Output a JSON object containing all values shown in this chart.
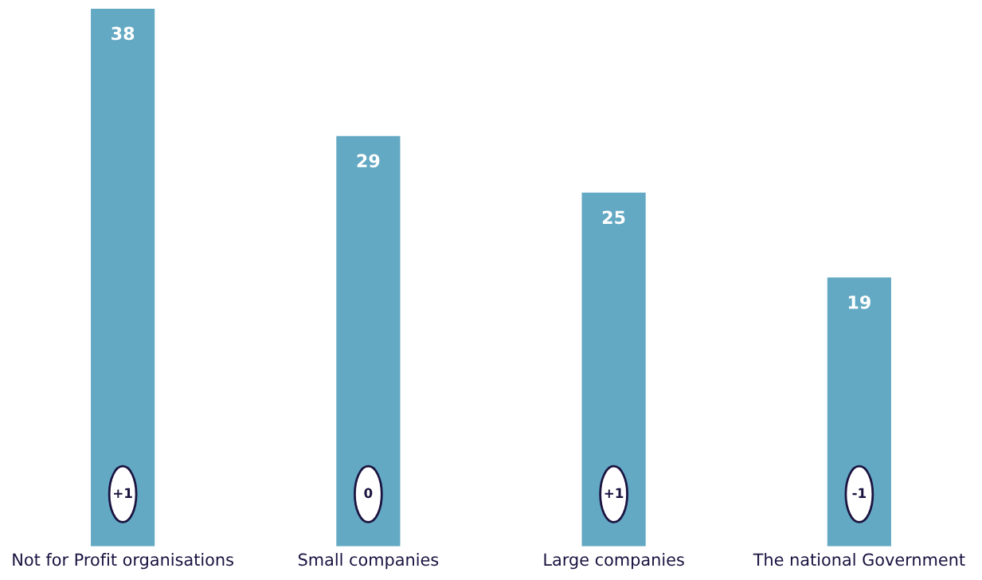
{
  "chart_data": {
    "type": "bar",
    "categories": [
      "Not for Profit organisations",
      "Small companies",
      "Large companies",
      "The national Government"
    ],
    "values": [
      38,
      29,
      25,
      19
    ],
    "color": "#63a9c3",
    "ylim": [
      0,
      38
    ],
    "data_labels": true,
    "grid": false,
    "legend": false,
    "annotations": [
      "+1",
      "0",
      "+1",
      "-1"
    ]
  }
}
